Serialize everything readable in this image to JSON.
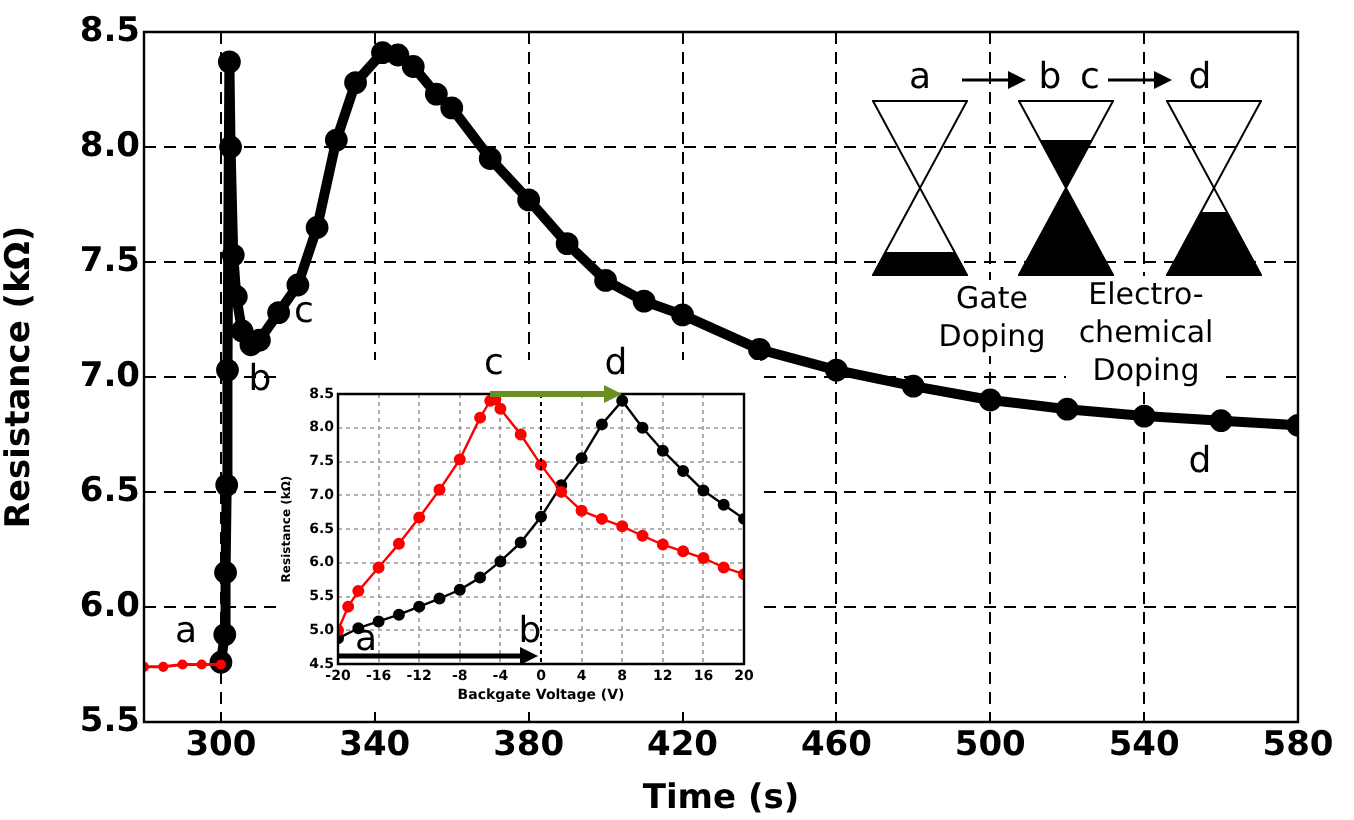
{
  "chart_data": [
    {
      "type": "line",
      "xlabel": "Time (s)",
      "ylabel": "Resistance (kΩ)",
      "xlim": [
        280,
        580
      ],
      "xticks": [
        300,
        340,
        380,
        420,
        460,
        500,
        540,
        580
      ],
      "ylim": [
        5.5,
        8.5
      ],
      "yticks": [
        5.5,
        {
          "value": 6,
          "label": "6.0"
        },
        6.5,
        {
          "value": 7,
          "label": "7.0"
        },
        7.5,
        {
          "value": 8,
          "label": "8.0"
        },
        8.5
      ],
      "grid": true,
      "legend": false,
      "marker": "circle",
      "series": [
        {
          "color": "#ff0000",
          "x": [
            280,
            285,
            290,
            295,
            300
          ],
          "values": [
            5.74,
            5.74,
            5.75,
            5.75,
            5.75
          ]
        },
        {
          "color": "#000000",
          "x": [
            300,
            301,
            301.2,
            301.5,
            301.7,
            302.2,
            302.5,
            303.2,
            304,
            305.5,
            307.8,
            310,
            315,
            320,
            325,
            330,
            335,
            342,
            346,
            350,
            356,
            360,
            370,
            380,
            390,
            400,
            410,
            420,
            440,
            460,
            480,
            500,
            520,
            540,
            560,
            580
          ],
          "values": [
            5.76,
            5.88,
            6.15,
            6.53,
            7.03,
            8.37,
            8.0,
            7.53,
            7.35,
            7.2,
            7.14,
            7.16,
            7.28,
            7.4,
            7.65,
            8.03,
            8.28,
            8.41,
            8.4,
            8.35,
            8.23,
            8.17,
            7.95,
            7.77,
            7.58,
            7.42,
            7.33,
            7.27,
            7.12,
            7.03,
            6.96,
            6.9,
            6.86,
            6.83,
            6.81,
            6.79
          ]
        }
      ],
      "annotations": [
        "a",
        "b",
        "c",
        "d",
        "a",
        "b",
        "c",
        "d",
        "Gate Doping",
        "Electro-chemical Doping"
      ]
    },
    {
      "type": "line",
      "xlabel": "Backgate Voltage (V)",
      "ylabel": "Resistance (kΩ)",
      "xlim": [
        -20,
        20
      ],
      "xticks": [
        -20,
        -16,
        -12,
        -8,
        -4,
        0,
        4,
        8,
        12,
        16,
        20
      ],
      "ylim": [
        4.5,
        8.5
      ],
      "yticks": [
        4.5,
        {
          "value": 5,
          "label": "5.0"
        },
        5.5,
        {
          "value": 6,
          "label": "6.0"
        },
        6.5,
        {
          "value": 7,
          "label": "7.0"
        },
        7.5,
        {
          "value": 8,
          "label": "8.0"
        },
        8.5
      ],
      "grid": true,
      "legend": false,
      "marker": "circle",
      "ref_lines": [
        {
          "axis": "x",
          "value": 0,
          "color": "#000000",
          "line_style": "dotted"
        }
      ],
      "series": [
        {
          "color": "#ff0000",
          "x": [
            -20,
            -19,
            -18,
            -16,
            -14,
            -12,
            -10,
            -8,
            -6,
            -5,
            -4.5,
            -4,
            -2,
            0,
            2,
            4,
            6,
            8,
            10,
            12,
            14,
            16,
            18,
            20
          ],
          "values": [
            5.0,
            5.35,
            5.58,
            5.93,
            6.28,
            6.67,
            7.08,
            7.53,
            8.15,
            8.4,
            8.42,
            8.28,
            7.9,
            7.45,
            7.05,
            6.77,
            6.65,
            6.54,
            6.4,
            6.27,
            6.17,
            6.07,
            5.93,
            5.83
          ]
        },
        {
          "color": "#000000",
          "x": [
            -20,
            -18,
            -16,
            -14,
            -12,
            -10,
            -8,
            -6,
            -4,
            -2,
            0,
            2,
            4,
            6,
            8,
            10,
            12,
            14,
            16,
            18,
            20
          ],
          "values": [
            4.88,
            5.03,
            5.13,
            5.23,
            5.35,
            5.47,
            5.6,
            5.78,
            6.02,
            6.3,
            6.68,
            7.15,
            7.55,
            8.05,
            8.4,
            8.0,
            7.66,
            7.36,
            7.07,
            6.86,
            6.65
          ]
        }
      ],
      "annotations": [
        "a",
        "b",
        "c",
        "d"
      ]
    }
  ]
}
